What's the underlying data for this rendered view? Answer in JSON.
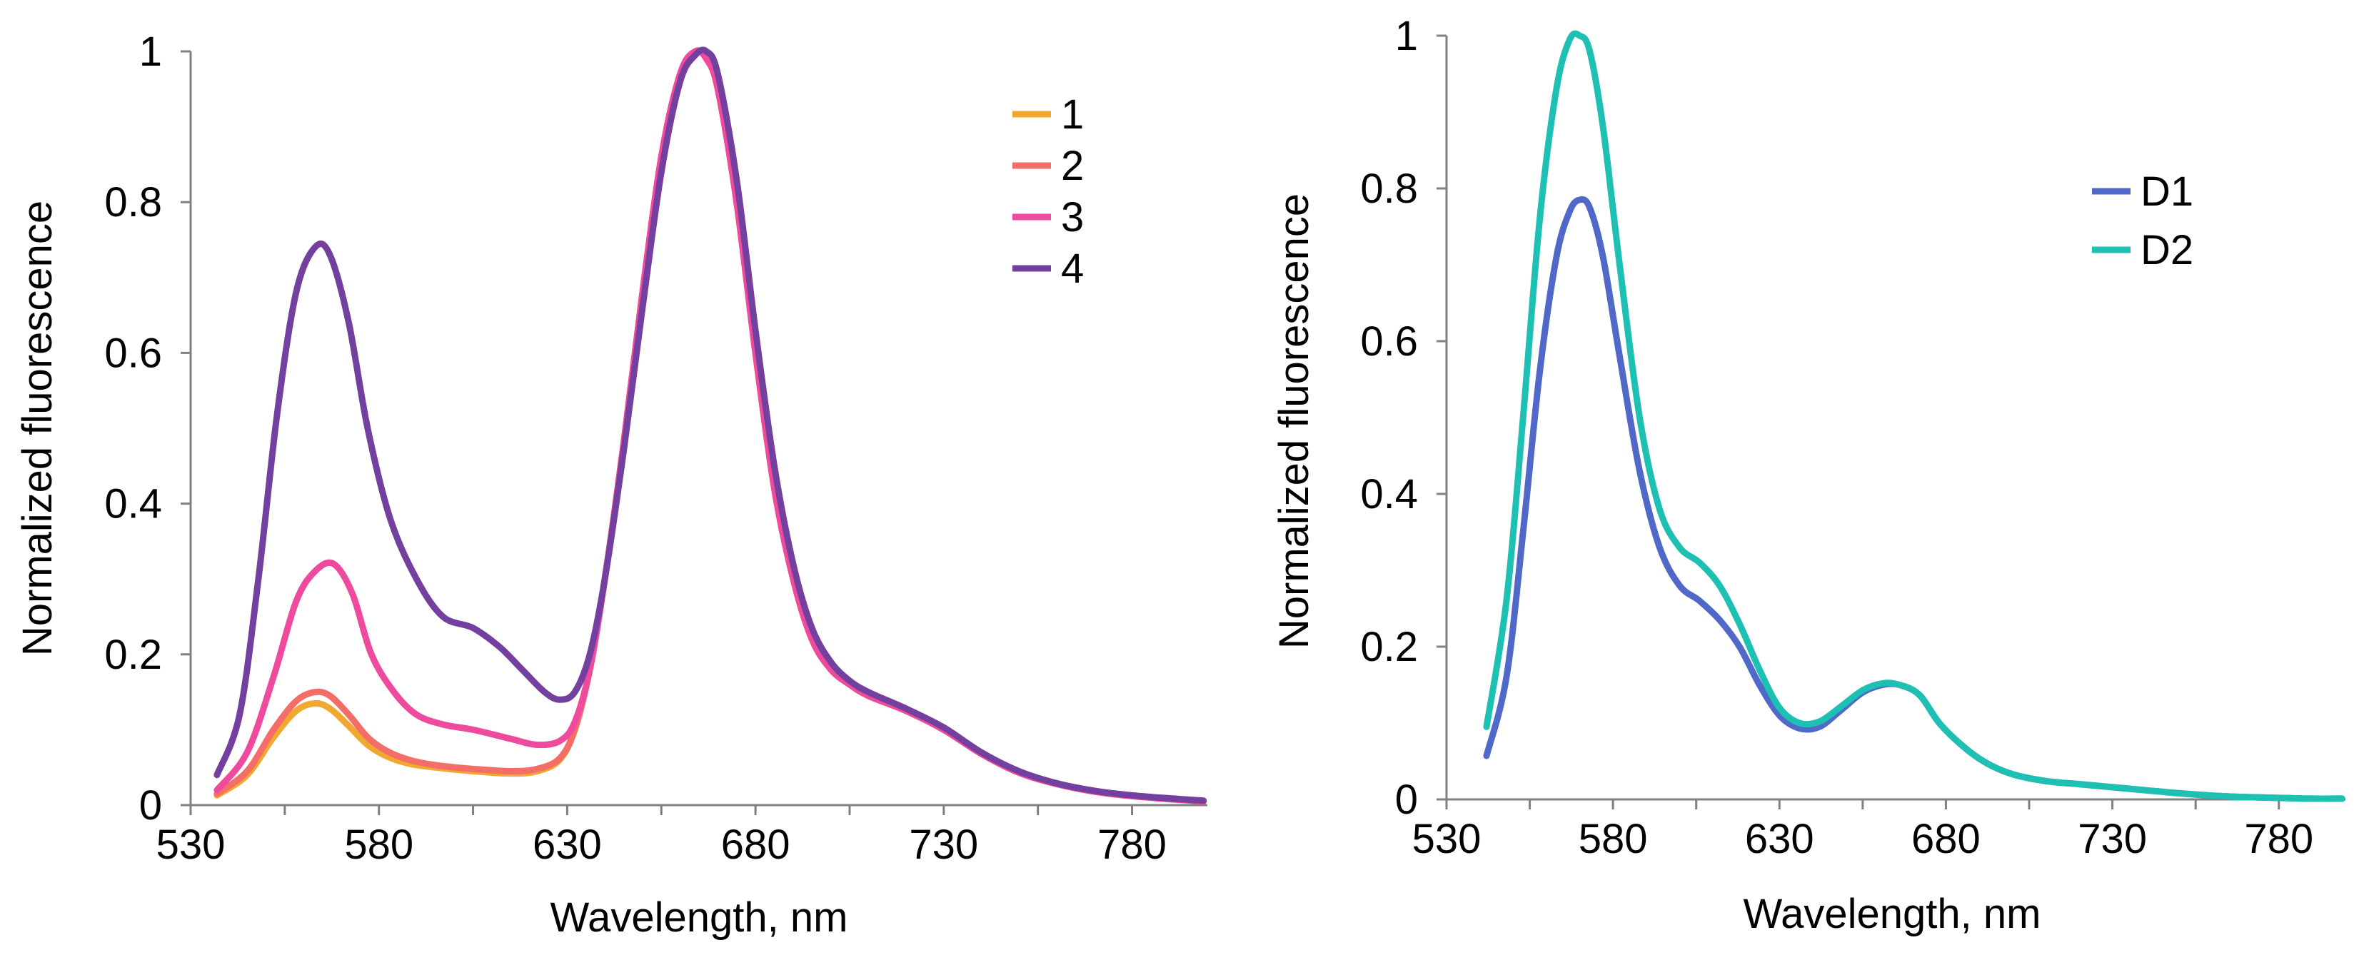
{
  "chart_data": [
    {
      "type": "line",
      "xlabel": "Wavelength, nm",
      "ylabel": "Normalized fluorescence",
      "xlim": [
        530,
        800
      ],
      "ylim": [
        0,
        1
      ],
      "xticks": [
        "530",
        "580",
        "630",
        "680",
        "730",
        "780"
      ],
      "yticks": [
        "0",
        "0.2",
        "0.4",
        "0.6",
        "0.8",
        "1"
      ],
      "legend_position": "top-right",
      "series": [
        {
          "name": "1",
          "color": "#F0A830",
          "x": [
            537,
            545,
            552,
            558,
            563,
            567,
            572,
            577,
            582,
            588,
            595,
            605,
            615,
            622,
            628,
            632,
            636,
            640,
            645,
            650,
            655,
            660,
            664,
            667,
            670,
            675,
            680,
            685,
            690,
            695,
            700,
            705,
            710,
            720,
            730,
            740,
            750,
            760,
            770,
            780,
            790,
            799
          ],
          "y": [
            0.013,
            0.04,
            0.09,
            0.125,
            0.135,
            0.128,
            0.105,
            0.08,
            0.065,
            0.055,
            0.05,
            0.045,
            0.042,
            0.045,
            0.06,
            0.1,
            0.18,
            0.3,
            0.48,
            0.68,
            0.86,
            0.97,
            1.0,
            0.99,
            0.95,
            0.8,
            0.6,
            0.42,
            0.3,
            0.22,
            0.18,
            0.16,
            0.145,
            0.125,
            0.1,
            0.068,
            0.043,
            0.028,
            0.018,
            0.012,
            0.008,
            0.005
          ]
        },
        {
          "name": "2",
          "color": "#F46E68",
          "x": [
            537,
            545,
            552,
            558,
            563,
            567,
            572,
            577,
            582,
            588,
            595,
            605,
            615,
            622,
            628,
            632,
            636,
            640,
            645,
            650,
            655,
            660,
            664,
            667,
            670,
            675,
            680,
            685,
            690,
            695,
            700,
            705,
            710,
            720,
            730,
            740,
            750,
            760,
            770,
            780,
            790,
            799
          ],
          "y": [
            0.015,
            0.045,
            0.1,
            0.138,
            0.15,
            0.145,
            0.12,
            0.09,
            0.072,
            0.06,
            0.053,
            0.048,
            0.045,
            0.048,
            0.062,
            0.1,
            0.18,
            0.3,
            0.48,
            0.68,
            0.86,
            0.97,
            1.0,
            0.99,
            0.95,
            0.8,
            0.6,
            0.42,
            0.3,
            0.22,
            0.18,
            0.16,
            0.145,
            0.125,
            0.1,
            0.068,
            0.043,
            0.028,
            0.018,
            0.012,
            0.008,
            0.005
          ]
        },
        {
          "name": "3",
          "color": "#EE4A9E",
          "x": [
            537,
            545,
            552,
            558,
            563,
            568,
            573,
            578,
            584,
            590,
            597,
            605,
            615,
            622,
            628,
            632,
            636,
            640,
            645,
            650,
            655,
            660,
            664,
            667,
            670,
            675,
            680,
            685,
            690,
            695,
            700,
            705,
            710,
            720,
            730,
            740,
            750,
            760,
            770,
            780,
            790,
            799
          ],
          "y": [
            0.02,
            0.07,
            0.17,
            0.27,
            0.31,
            0.32,
            0.28,
            0.2,
            0.15,
            0.12,
            0.107,
            0.1,
            0.088,
            0.08,
            0.085,
            0.11,
            0.18,
            0.3,
            0.48,
            0.68,
            0.86,
            0.97,
            1.0,
            0.99,
            0.95,
            0.8,
            0.6,
            0.42,
            0.3,
            0.22,
            0.18,
            0.16,
            0.145,
            0.125,
            0.1,
            0.068,
            0.043,
            0.028,
            0.018,
            0.012,
            0.008,
            0.005
          ]
        },
        {
          "name": "4",
          "color": "#7440A0",
          "x": [
            537,
            543,
            548,
            553,
            558,
            563,
            567,
            572,
            577,
            583,
            590,
            597,
            605,
            612,
            618,
            624,
            628,
            632,
            636,
            640,
            645,
            650,
            655,
            660,
            664,
            667,
            670,
            675,
            680,
            685,
            690,
            695,
            700,
            705,
            710,
            720,
            730,
            740,
            750,
            760,
            770,
            780,
            790,
            799
          ],
          "y": [
            0.04,
            0.12,
            0.3,
            0.52,
            0.68,
            0.74,
            0.73,
            0.64,
            0.5,
            0.38,
            0.3,
            0.25,
            0.235,
            0.21,
            0.18,
            0.15,
            0.14,
            0.15,
            0.2,
            0.3,
            0.47,
            0.66,
            0.84,
            0.96,
            0.995,
            1.0,
            0.97,
            0.83,
            0.63,
            0.45,
            0.32,
            0.235,
            0.19,
            0.165,
            0.15,
            0.128,
            0.103,
            0.07,
            0.045,
            0.029,
            0.019,
            0.013,
            0.009,
            0.006
          ]
        }
      ]
    },
    {
      "type": "line",
      "xlabel": "Wavelength, nm",
      "ylabel": "Normalized fluorescence",
      "xlim": [
        530,
        800
      ],
      "ylim": [
        0,
        1
      ],
      "xticks": [
        "530",
        "580",
        "630",
        "680",
        "730",
        "780"
      ],
      "yticks": [
        "0",
        "0.2",
        "0.4",
        "0.6",
        "0.8",
        "1"
      ],
      "legend_position": "top-right",
      "series": [
        {
          "name": "D1",
          "color": "#5068C8",
          "x": [
            542,
            548,
            553,
            558,
            563,
            567,
            570,
            573,
            577,
            582,
            588,
            594,
            600,
            606,
            612,
            618,
            624,
            630,
            636,
            642,
            648,
            655,
            661,
            666,
            672,
            678,
            685,
            692,
            700,
            710,
            720,
            730,
            740,
            750,
            760,
            770,
            780,
            790,
            799
          ],
          "y": [
            0.057,
            0.16,
            0.35,
            0.56,
            0.71,
            0.77,
            0.785,
            0.775,
            0.71,
            0.58,
            0.43,
            0.33,
            0.28,
            0.26,
            0.235,
            0.2,
            0.15,
            0.11,
            0.093,
            0.095,
            0.115,
            0.14,
            0.15,
            0.15,
            0.137,
            0.1,
            0.07,
            0.048,
            0.033,
            0.024,
            0.02,
            0.016,
            0.012,
            0.008,
            0.005,
            0.003,
            0.002,
            0.001,
            0.001
          ]
        },
        {
          "name": "D2",
          "color": "#1EC0B4",
          "x": [
            542,
            548,
            553,
            558,
            563,
            567,
            570,
            573,
            577,
            582,
            588,
            594,
            600,
            606,
            612,
            618,
            624,
            630,
            636,
            642,
            648,
            655,
            661,
            666,
            672,
            678,
            685,
            692,
            700,
            710,
            720,
            730,
            740,
            750,
            760,
            770,
            780,
            790,
            799
          ],
          "y": [
            0.095,
            0.26,
            0.5,
            0.76,
            0.93,
            0.995,
            1.0,
            0.98,
            0.88,
            0.7,
            0.5,
            0.38,
            0.33,
            0.31,
            0.28,
            0.23,
            0.17,
            0.12,
            0.1,
            0.102,
            0.12,
            0.143,
            0.152,
            0.15,
            0.137,
            0.1,
            0.07,
            0.048,
            0.033,
            0.024,
            0.02,
            0.016,
            0.012,
            0.008,
            0.005,
            0.003,
            0.002,
            0.001,
            0.001
          ]
        }
      ]
    }
  ]
}
